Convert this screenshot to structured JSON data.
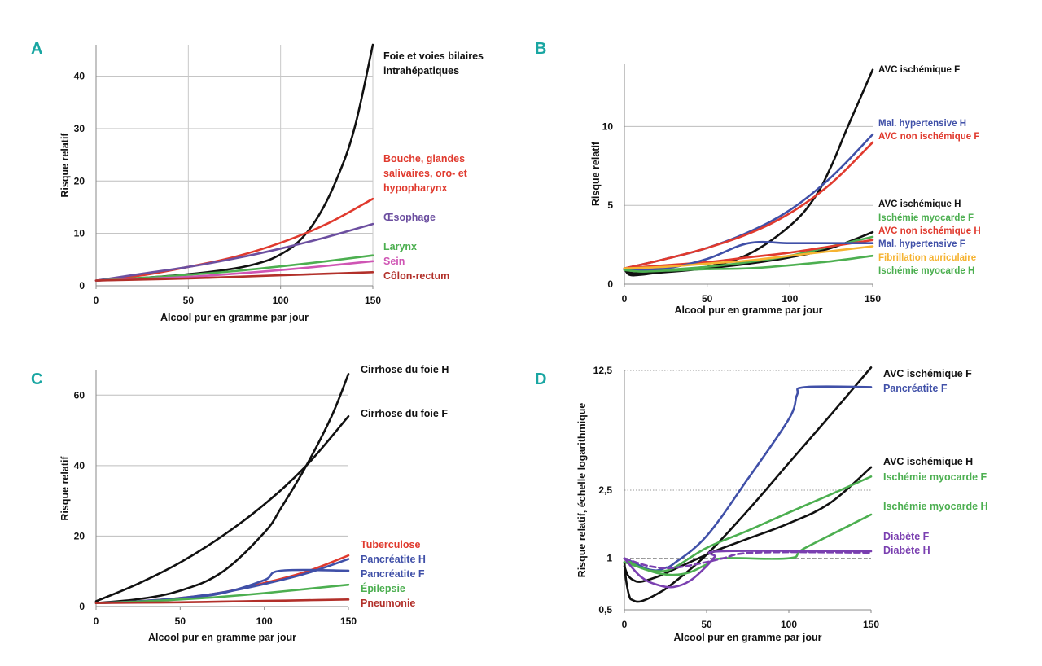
{
  "colors": {
    "black": "#111111",
    "red": "#e03a2e",
    "purple": "#6c4fa0",
    "green": "#4caf50",
    "pink": "#cf55b4",
    "darkred": "#b2302a",
    "blue": "#4050a8",
    "orange": "#f6b331",
    "violet": "#7a3fb0",
    "panel_letter": "#19a6a2"
  },
  "chart_data": [
    {
      "panel": "A",
      "type": "line",
      "xlabel": "Alcool pur en gramme par jour",
      "ylabel": "Risque relatif",
      "xlim": [
        0,
        150
      ],
      "ylim": [
        0,
        46
      ],
      "xticks": [
        0,
        50,
        100,
        150
      ],
      "yticks": [
        0,
        10,
        20,
        30,
        40
      ],
      "vertical_grid": true,
      "series": [
        {
          "name": "Foie et voies bilaires intrahépatiques",
          "label_lines": [
            "Foie et voies bilaires",
            "intrahépatiques"
          ],
          "color": "black",
          "x": [
            0,
            25,
            50,
            75,
            90,
            100,
            110,
            120,
            130,
            140,
            150
          ],
          "y": [
            1,
            1.5,
            2.2,
            3.3,
            4.5,
            6,
            8.5,
            13,
            20,
            30,
            46
          ]
        },
        {
          "name": "Bouche, glandes salivaires, oro- et hypopharynx",
          "label_lines": [
            "Bouche, glandes",
            "salivaires, oro- et",
            "hypopharynx"
          ],
          "color": "red",
          "x": [
            0,
            25,
            50,
            75,
            100,
            125,
            150
          ],
          "y": [
            1,
            2,
            3.6,
            5.5,
            8.2,
            11.8,
            16.6
          ]
        },
        {
          "name": "Œsophage",
          "label_lines": [
            "Œsophage"
          ],
          "color": "purple",
          "x": [
            0,
            25,
            50,
            75,
            100,
            125,
            150
          ],
          "y": [
            1,
            2.3,
            3.6,
            5.2,
            7.1,
            9.3,
            11.8
          ]
        },
        {
          "name": "Larynx",
          "label_lines": [
            "Larynx"
          ],
          "color": "green",
          "x": [
            0,
            25,
            50,
            75,
            100,
            125,
            150
          ],
          "y": [
            1,
            1.5,
            2.1,
            2.8,
            3.7,
            4.7,
            5.8
          ]
        },
        {
          "name": "Sein",
          "label_lines": [
            "Sein"
          ],
          "color": "pink",
          "x": [
            0,
            25,
            50,
            75,
            100,
            125,
            150
          ],
          "y": [
            1,
            1.3,
            1.7,
            2.3,
            3,
            3.8,
            4.7
          ]
        },
        {
          "name": "Côlon-rectum",
          "label_lines": [
            "Côlon-rectum"
          ],
          "color": "darkred",
          "x": [
            0,
            25,
            50,
            75,
            100,
            125,
            150
          ],
          "y": [
            1,
            1.2,
            1.4,
            1.7,
            2,
            2.3,
            2.6
          ]
        }
      ]
    },
    {
      "panel": "B",
      "type": "line",
      "xlabel": "Alcool pur en gramme par jour",
      "ylabel": "Risque relatif",
      "xlim": [
        0,
        150
      ],
      "ylim": [
        0,
        14
      ],
      "xticks": [
        0,
        50,
        100,
        150
      ],
      "yticks": [
        0,
        5,
        10
      ],
      "vertical_grid": false,
      "series": [
        {
          "name": "AVC ischémique F",
          "color": "black",
          "x": [
            0,
            3,
            10,
            25,
            50,
            75,
            100,
            115,
            125,
            135,
            150
          ],
          "y": [
            1,
            0.6,
            0.6,
            0.8,
            1.1,
            1.9,
            3.7,
            5.5,
            7.5,
            10,
            13.6
          ]
        },
        {
          "name": "Mal. hypertensive H",
          "color": "blue",
          "x": [
            0,
            25,
            50,
            75,
            100,
            125,
            150
          ],
          "y": [
            1,
            1.6,
            2.3,
            3.3,
            4.7,
            6.8,
            9.5
          ]
        },
        {
          "name": "AVC non ischémique F",
          "color": "red",
          "x": [
            0,
            25,
            50,
            75,
            100,
            125,
            150
          ],
          "y": [
            1,
            1.6,
            2.3,
            3.2,
            4.5,
            6.4,
            9
          ]
        },
        {
          "name": "AVC ischémique H",
          "color": "black",
          "x": [
            0,
            5,
            15,
            30,
            50,
            75,
            100,
            125,
            150
          ],
          "y": [
            0.9,
            0.7,
            0.7,
            0.8,
            1,
            1.3,
            1.7,
            2.3,
            3.3
          ]
        },
        {
          "name": "Ischémie myocarde F",
          "color": "green",
          "x": [
            0,
            10,
            25,
            50,
            75,
            100,
            125,
            150
          ],
          "y": [
            0.9,
            0.8,
            0.9,
            1.1,
            1.4,
            1.8,
            2.4,
            3
          ]
        },
        {
          "name": "AVC non ischémique H",
          "color": "red",
          "x": [
            0,
            25,
            50,
            75,
            100,
            125,
            150
          ],
          "y": [
            1,
            1.2,
            1.4,
            1.7,
            2,
            2.4,
            2.8
          ]
        },
        {
          "name": "Mal. hypertensive F",
          "color": "blue",
          "x": [
            0,
            25,
            50,
            75,
            100,
            125,
            150
          ],
          "y": [
            0.9,
            1,
            1.6,
            2.6,
            2.6,
            2.6,
            2.6
          ]
        },
        {
          "name": "Fibrillation auriculaire",
          "color": "orange",
          "x": [
            0,
            25,
            50,
            75,
            100,
            125,
            150
          ],
          "y": [
            1,
            1.1,
            1.3,
            1.5,
            1.8,
            2.1,
            2.4
          ]
        },
        {
          "name": "Ischémie myocarde H",
          "color": "green",
          "x": [
            0,
            10,
            25,
            50,
            75,
            100,
            125,
            150
          ],
          "y": [
            0.9,
            0.8,
            0.85,
            0.95,
            1,
            1.2,
            1.45,
            1.8
          ]
        }
      ]
    },
    {
      "panel": "C",
      "type": "line",
      "xlabel": "Alcool pur en gramme par jour",
      "ylabel": "Risque relatif",
      "xlim": [
        0,
        150
      ],
      "ylim": [
        0,
        67
      ],
      "xticks": [
        0,
        50,
        100,
        150
      ],
      "yticks": [
        0,
        20,
        40,
        60
      ],
      "vertical_grid": false,
      "series": [
        {
          "name": "Cirrhose du foie H",
          "color": "black",
          "x": [
            0,
            25,
            50,
            75,
            100,
            110,
            125,
            140,
            150
          ],
          "y": [
            1,
            2.1,
            4.5,
            9.8,
            21,
            28,
            40,
            54,
            66
          ]
        },
        {
          "name": "Cirrhose du foie F",
          "color": "black",
          "x": [
            0,
            25,
            50,
            75,
            100,
            125,
            150
          ],
          "y": [
            1.5,
            6.5,
            12.5,
            20,
            29,
            40,
            54
          ]
        },
        {
          "name": "Tuberculose",
          "color": "red",
          "x": [
            0,
            25,
            50,
            75,
            100,
            125,
            150
          ],
          "y": [
            1,
            1.5,
            2.4,
            4,
            6.7,
            9.9,
            14.5
          ]
        },
        {
          "name": "Pancréatite H",
          "color": "blue",
          "x": [
            0,
            25,
            50,
            75,
            100,
            125,
            150
          ],
          "y": [
            1,
            1.5,
            2.4,
            4,
            6.4,
            9.4,
            13.5
          ]
        },
        {
          "name": "Pancréatite F",
          "color": "blue",
          "x": [
            0,
            25,
            50,
            75,
            100,
            110,
            150
          ],
          "y": [
            1,
            1.4,
            2.2,
            3.8,
            7.5,
            10.2,
            10.2
          ]
        },
        {
          "name": "Épilepsie",
          "color": "green",
          "x": [
            0,
            25,
            50,
            75,
            100,
            125,
            150
          ],
          "y": [
            1,
            1.4,
            2,
            2.8,
            3.8,
            5,
            6.2
          ]
        },
        {
          "name": "Pneumonie",
          "color": "darkred",
          "x": [
            0,
            25,
            50,
            75,
            100,
            125,
            150
          ],
          "y": [
            1,
            1.1,
            1.2,
            1.4,
            1.6,
            1.8,
            2
          ]
        }
      ]
    },
    {
      "panel": "D",
      "type": "line",
      "scale": "log",
      "xlabel": "Alcool pur en gramme par jour",
      "ylabel": "Risque relatif, échelle logarithmique",
      "xlim": [
        0,
        150
      ],
      "ylim": [
        0.5,
        12.5
      ],
      "xticks": [
        0,
        50,
        100,
        150
      ],
      "yticks": [
        0.5,
        1,
        2.5,
        12.5
      ],
      "ytick_labels": [
        "0,5",
        "1",
        "2,5",
        "12,5"
      ],
      "reference_line": 1,
      "vertical_grid": false,
      "series": [
        {
          "name": "AVC ischémique F",
          "color": "black",
          "x": [
            0,
            1,
            3,
            5,
            10,
            20,
            30,
            50,
            75,
            100,
            125,
            150
          ],
          "y": [
            0.95,
            0.75,
            0.6,
            0.57,
            0.56,
            0.62,
            0.72,
            1.05,
            1.9,
            3.6,
            6.8,
            13
          ]
        },
        {
          "name": "Pancréatite F",
          "color": "blue",
          "x": [
            0,
            5,
            10,
            15,
            20,
            25,
            30,
            50,
            75,
            100,
            105,
            110,
            150
          ],
          "y": [
            1,
            0.95,
            0.9,
            0.86,
            0.85,
            0.88,
            0.93,
            1.35,
            2.9,
            6.5,
            9,
            10,
            10
          ]
        },
        {
          "name": "AVC ischémique H",
          "color": "black",
          "x": [
            0,
            2,
            5,
            10,
            20,
            30,
            50,
            60,
            75,
            100,
            125,
            150
          ],
          "y": [
            0.9,
            0.8,
            0.75,
            0.73,
            0.78,
            0.86,
            1.05,
            1.15,
            1.3,
            1.6,
            2.1,
            3.4
          ]
        },
        {
          "name": "Ischémie myocarde F",
          "color": "green",
          "x": [
            0,
            10,
            20,
            30,
            50,
            75,
            100,
            125,
            150
          ],
          "y": [
            1,
            0.88,
            0.84,
            0.88,
            1.15,
            1.45,
            1.85,
            2.35,
            3
          ]
        },
        {
          "name": "Ischémie myocarde H",
          "color": "green",
          "x": [
            0,
            10,
            20,
            30,
            40,
            50,
            60,
            100,
            110,
            150
          ],
          "y": [
            0.95,
            0.88,
            0.82,
            0.8,
            0.83,
            0.92,
            1,
            1,
            1.15,
            1.8
          ]
        },
        {
          "name": "Diabète F",
          "color": "violet",
          "x": [
            0,
            10,
            20,
            30,
            40,
            50,
            55,
            60,
            150
          ],
          "y": [
            1,
            0.78,
            0.7,
            0.68,
            0.74,
            0.9,
            1.02,
            1.1,
            1.1
          ]
        },
        {
          "name": "Diabète H",
          "color": "violet",
          "dashed": true,
          "x": [
            0,
            15,
            30,
            50,
            60,
            80,
            150
          ],
          "y": [
            1,
            0.9,
            0.88,
            0.95,
            1.0,
            1.08,
            1.08
          ]
        }
      ]
    }
  ]
}
